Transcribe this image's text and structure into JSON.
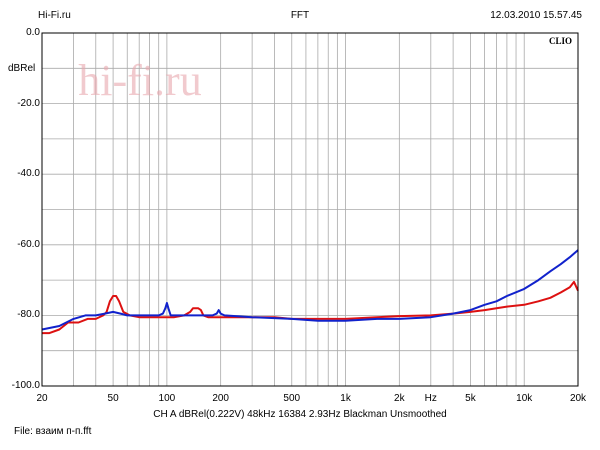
{
  "header": {
    "left": "Hi-Fi.ru",
    "center": "FFT",
    "right": "12.03.2010 15.57.45"
  },
  "footer": {
    "settings": "CH A  dBRel(0.222V)  48kHz  16384  2.93Hz  Blackman  Unsmoothed",
    "file": "File: взаим п-п.fft"
  },
  "brand": {
    "clio": "CLIO",
    "watermark": "hi-fi.ru"
  },
  "colors": {
    "red": "#dd1111",
    "blue": "#1122cc",
    "grid": "#aaaaaa",
    "watermark": "#e8a8ae"
  },
  "chart_data": {
    "type": "line",
    "title": "FFT",
    "ylabel": "dBRel",
    "xlabel": "Hz",
    "xscale": "log",
    "xlim": [
      20,
      20000
    ],
    "ylim": [
      -100,
      0
    ],
    "grid": true,
    "y_ticks": [
      "0.0",
      "-20.0",
      "-40.0",
      "-60.0",
      "-80.0",
      "-100.0"
    ],
    "x_ticks": [
      {
        "v": 20,
        "label": "20"
      },
      {
        "v": 50,
        "label": "50"
      },
      {
        "v": 100,
        "label": "100"
      },
      {
        "v": 200,
        "label": "200"
      },
      {
        "v": 500,
        "label": "500"
      },
      {
        "v": 1000,
        "label": "1k"
      },
      {
        "v": 2000,
        "label": "2k"
      },
      {
        "v": 3000,
        "label": "Hz"
      },
      {
        "v": 5000,
        "label": "5k"
      },
      {
        "v": 10000,
        "label": "10k"
      },
      {
        "v": 20000,
        "label": "20k"
      }
    ],
    "series": [
      {
        "color": "#dd1111",
        "points": [
          [
            20,
            -85
          ],
          [
            22,
            -85
          ],
          [
            25,
            -84
          ],
          [
            28,
            -82
          ],
          [
            32,
            -82
          ],
          [
            36,
            -81
          ],
          [
            40,
            -81
          ],
          [
            44,
            -80
          ],
          [
            46,
            -79
          ],
          [
            48,
            -76
          ],
          [
            50,
            -74.5
          ],
          [
            52,
            -74.5
          ],
          [
            54,
            -76
          ],
          [
            57,
            -79
          ],
          [
            62,
            -80
          ],
          [
            70,
            -80.5
          ],
          [
            80,
            -80.5
          ],
          [
            90,
            -80.5
          ],
          [
            100,
            -80.5
          ],
          [
            110,
            -80.5
          ],
          [
            125,
            -80
          ],
          [
            135,
            -79
          ],
          [
            140,
            -78
          ],
          [
            150,
            -78
          ],
          [
            155,
            -78.5
          ],
          [
            160,
            -80
          ],
          [
            170,
            -80.5
          ],
          [
            190,
            -80.5
          ],
          [
            250,
            -80.5
          ],
          [
            300,
            -80.5
          ],
          [
            400,
            -80.5
          ],
          [
            500,
            -81
          ],
          [
            700,
            -81
          ],
          [
            1000,
            -81
          ],
          [
            1500,
            -80.5
          ],
          [
            2000,
            -80.2
          ],
          [
            3000,
            -80
          ],
          [
            4000,
            -79.5
          ],
          [
            5000,
            -79
          ],
          [
            6000,
            -78.5
          ],
          [
            7000,
            -78
          ],
          [
            8000,
            -77.5
          ],
          [
            10000,
            -77
          ],
          [
            12000,
            -76
          ],
          [
            14000,
            -75
          ],
          [
            16000,
            -73.5
          ],
          [
            18000,
            -72
          ],
          [
            19000,
            -70.5
          ],
          [
            20000,
            -73
          ]
        ]
      },
      {
        "color": "#1122cc",
        "points": [
          [
            20,
            -84
          ],
          [
            25,
            -83
          ],
          [
            30,
            -81
          ],
          [
            35,
            -80
          ],
          [
            40,
            -80
          ],
          [
            45,
            -79.5
          ],
          [
            50,
            -79
          ],
          [
            55,
            -79.5
          ],
          [
            60,
            -80
          ],
          [
            70,
            -80
          ],
          [
            80,
            -80
          ],
          [
            90,
            -80
          ],
          [
            95,
            -79.5
          ],
          [
            98,
            -78
          ],
          [
            100,
            -76.5
          ],
          [
            102,
            -78
          ],
          [
            105,
            -80
          ],
          [
            110,
            -80
          ],
          [
            120,
            -80
          ],
          [
            150,
            -80
          ],
          [
            180,
            -80
          ],
          [
            190,
            -79.5
          ],
          [
            195,
            -78.5
          ],
          [
            200,
            -79.5
          ],
          [
            210,
            -80
          ],
          [
            300,
            -80.5
          ],
          [
            500,
            -81
          ],
          [
            700,
            -81.5
          ],
          [
            1000,
            -81.5
          ],
          [
            1500,
            -81
          ],
          [
            2000,
            -81
          ],
          [
            3000,
            -80.5
          ],
          [
            4000,
            -79.5
          ],
          [
            5000,
            -78.5
          ],
          [
            6000,
            -77
          ],
          [
            7000,
            -76
          ],
          [
            8000,
            -74.5
          ],
          [
            10000,
            -72.5
          ],
          [
            12000,
            -70
          ],
          [
            14000,
            -67.5
          ],
          [
            16000,
            -65.5
          ],
          [
            18000,
            -63.5
          ],
          [
            20000,
            -61.5
          ]
        ]
      }
    ]
  }
}
